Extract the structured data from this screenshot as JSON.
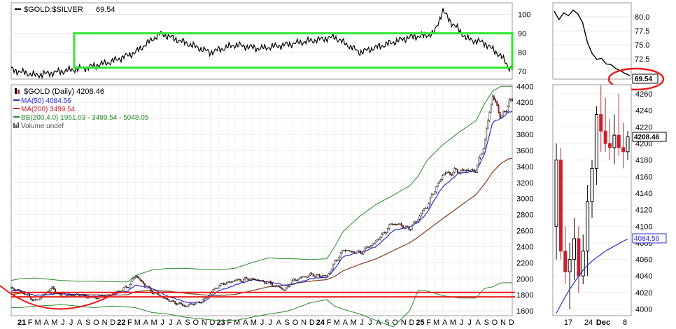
{
  "chart_data": [
    {
      "type": "line",
      "panel": "ratio-main",
      "legend": "$GOLD:$SILVER",
      "last_value": "69.54",
      "y_ticks": [
        "100",
        "90",
        "80",
        "70"
      ],
      "ylim": [
        66,
        106
      ],
      "x": [
        "2020-12",
        "2021-03",
        "2021-06",
        "2021-09",
        "2021-12",
        "2022-03",
        "2022-06",
        "2022-09",
        "2022-12",
        "2023-03",
        "2023-06",
        "2023-09",
        "2023-12",
        "2024-03",
        "2024-06",
        "2024-09",
        "2024-12",
        "2025-02",
        "2025-03",
        "2025-04",
        "2025-05",
        "2025-07",
        "2025-09",
        "2025-11",
        "2025-12"
      ],
      "y": [
        71,
        68,
        70,
        72,
        75,
        80,
        90,
        85,
        80,
        84,
        82,
        84,
        86,
        88,
        80,
        84,
        88,
        89,
        90,
        102,
        96,
        87,
        85,
        78,
        72
      ],
      "annotations": [
        {
          "type": "box",
          "color": "#2ee82e",
          "y_range": [
            72,
            90
          ]
        }
      ]
    },
    {
      "type": "line",
      "panel": "ratio-zoom",
      "y_ticks": [
        "80.0",
        "77.5",
        "75.0",
        "72.5"
      ],
      "ylim": [
        68.9,
        82.5
      ],
      "last_value": "69.54",
      "y": [
        81.0,
        79.5,
        80.7,
        80.2,
        81.2,
        80.5,
        79.0,
        75.5,
        73.5,
        72.4,
        72.6,
        71.6,
        71.5,
        70.8,
        70.4,
        69.9,
        69.54
      ]
    },
    {
      "type": "candlestick",
      "panel": "gold-main",
      "title": "$GOLD (Daily) 4208.46",
      "legend": [
        {
          "label": "MA(50) 4084.56",
          "color": "#2b2bd6"
        },
        {
          "label": "MA(200) 3499.54",
          "color": "#cc1f2e"
        },
        {
          "label": "BB(200,4.0) 1951.03 - 3499.54 - 5048.05",
          "color": "#2a8a2a"
        },
        {
          "label": "Volume undef",
          "color": "#555555"
        }
      ],
      "y_ticks": [
        "4400",
        "4200",
        "4000",
        "3800",
        "3600",
        "3400",
        "3200",
        "3000",
        "2800",
        "2600",
        "2400",
        "2200",
        "2000",
        "1800",
        "1600"
      ],
      "ylim": [
        1540,
        4420
      ],
      "x_ticks": [
        "21",
        "F",
        "M",
        "A",
        "M",
        "J",
        "J",
        "A",
        "S",
        "O",
        "N",
        "D",
        "22",
        "F",
        "M",
        "A",
        "M",
        "J",
        "J",
        "A",
        "S",
        "O",
        "N",
        "D",
        "23",
        "F",
        "M",
        "A",
        "M",
        "J",
        "J",
        "A",
        "S",
        "O",
        "N",
        "D",
        "24",
        "F",
        "M",
        "A",
        "M",
        "J",
        "J",
        "A",
        "S",
        "O",
        "N",
        "D",
        "25",
        "F",
        "M",
        "A",
        "M",
        "J",
        "J",
        "A",
        "S",
        "O",
        "N",
        "D"
      ],
      "x": [
        "2020-12",
        "2021-01",
        "2021-03",
        "2021-05",
        "2021-06",
        "2021-08",
        "2021-10",
        "2021-12",
        "2022-02",
        "2022-03",
        "2022-05",
        "2022-07",
        "2022-09",
        "2022-11",
        "2023-01",
        "2023-03",
        "2023-05",
        "2023-07",
        "2023-09",
        "2023-10",
        "2023-12",
        "2024-02",
        "2024-03",
        "2024-04",
        "2024-06",
        "2024-08",
        "2024-10",
        "2024-12",
        "2025-01",
        "2025-02",
        "2025-04",
        "2025-06",
        "2025-08",
        "2025-09",
        "2025-10",
        "2025-11",
        "2025-12"
      ],
      "price": [
        1880,
        1850,
        1720,
        1890,
        1780,
        1800,
        1760,
        1800,
        1900,
        2040,
        1840,
        1730,
        1660,
        1720,
        1920,
        1980,
        2000,
        1950,
        1860,
        1980,
        2050,
        2030,
        2200,
        2360,
        2320,
        2470,
        2700,
        2620,
        2760,
        2900,
        3300,
        3350,
        3350,
        3700,
        4300,
        4000,
        4208
      ],
      "ma50": [
        1850,
        1855,
        1790,
        1810,
        1820,
        1800,
        1780,
        1790,
        1850,
        1920,
        1880,
        1780,
        1710,
        1700,
        1850,
        1920,
        1990,
        1960,
        1920,
        1930,
        2000,
        2020,
        2120,
        2280,
        2330,
        2400,
        2600,
        2650,
        2700,
        2820,
        3150,
        3320,
        3340,
        3550,
        3950,
        4000,
        4084
      ],
      "ma200": [
        1800,
        1820,
        1830,
        1820,
        1810,
        1805,
        1800,
        1795,
        1800,
        1840,
        1855,
        1845,
        1820,
        1800,
        1790,
        1805,
        1850,
        1900,
        1920,
        1940,
        1970,
        1990,
        2030,
        2100,
        2180,
        2250,
        2350,
        2450,
        2520,
        2600,
        2750,
        2900,
        3050,
        3180,
        3330,
        3440,
        3499
      ],
      "bb_upper": [
        1980,
        2000,
        2010,
        1990,
        1980,
        1970,
        1970,
        1965,
        1960,
        2040,
        2110,
        2130,
        2130,
        2120,
        2110,
        2130,
        2200,
        2260,
        2250,
        2250,
        2240,
        2250,
        2400,
        2590,
        2780,
        2930,
        3040,
        3160,
        3280,
        3470,
        3670,
        3830,
        3970,
        4180,
        4340,
        4400,
        4400
      ],
      "bb_lower": [
        1640,
        1640,
        1660,
        1670,
        1680,
        1660,
        1640,
        1660,
        1650,
        1640,
        1580,
        1560,
        1520,
        1500,
        1480,
        1480,
        1520,
        1560,
        1590,
        1620,
        1700,
        1740,
        1660,
        1620,
        1560,
        1480,
        1400,
        1600,
        1860,
        1850,
        1790,
        1760,
        1760,
        1880,
        1900,
        1950,
        1951
      ],
      "annotations": [
        {
          "type": "hline",
          "color": "#ee1b1b",
          "value": 1830
        },
        {
          "type": "hline",
          "color": "#ee1b1b",
          "value": 1775
        },
        {
          "type": "arc",
          "color": "#ee1b1b"
        }
      ]
    },
    {
      "type": "candlestick",
      "panel": "gold-zoom",
      "y_ticks": [
        "4260",
        "4240",
        "4220",
        "4200",
        "4180",
        "4160",
        "4140",
        "4120",
        "4100",
        "4080",
        "4060",
        "4040",
        "4020",
        "4000"
      ],
      "ylim": [
        3992,
        4271
      ],
      "x_ticks": [
        "17",
        "24",
        "Dec",
        "8"
      ],
      "last_value": "4208.46",
      "ma_last_value": "4084.56",
      "candles": [
        {
          "o": 4100,
          "h": 4200,
          "l": 4060,
          "c": 4180
        },
        {
          "o": 4180,
          "h": 4195,
          "l": 4060,
          "c": 4070
        },
        {
          "o": 4070,
          "h": 4100,
          "l": 4030,
          "c": 4045
        },
        {
          "o": 4045,
          "h": 4080,
          "l": 4000,
          "c": 4060
        },
        {
          "o": 4060,
          "h": 4110,
          "l": 4035,
          "c": 4085
        },
        {
          "o": 4085,
          "h": 4100,
          "l": 4020,
          "c": 4040
        },
        {
          "o": 4040,
          "h": 4090,
          "l": 4030,
          "c": 4070
        },
        {
          "o": 4070,
          "h": 4150,
          "l": 4040,
          "c": 4130
        },
        {
          "o": 4130,
          "h": 4180,
          "l": 4110,
          "c": 4170
        },
        {
          "o": 4170,
          "h": 4245,
          "l": 4150,
          "c": 4235
        },
        {
          "o": 4235,
          "h": 4270,
          "l": 4190,
          "c": 4215
        },
        {
          "o": 4215,
          "h": 4255,
          "l": 4190,
          "c": 4200
        },
        {
          "o": 4200,
          "h": 4230,
          "l": 4180,
          "c": 4195
        },
        {
          "o": 4195,
          "h": 4235,
          "l": 4175,
          "c": 4210
        },
        {
          "o": 4210,
          "h": 4260,
          "l": 4185,
          "c": 4195
        },
        {
          "o": 4195,
          "h": 4225,
          "l": 4170,
          "c": 4190
        },
        {
          "o": 4190,
          "h": 4215,
          "l": 4180,
          "c": 4208
        }
      ],
      "ma": [
        3995,
        4005,
        4015,
        4024,
        4032,
        4040,
        4047,
        4053,
        4058,
        4062,
        4066,
        4070,
        4073,
        4076,
        4079,
        4082,
        4084.56
      ]
    }
  ]
}
